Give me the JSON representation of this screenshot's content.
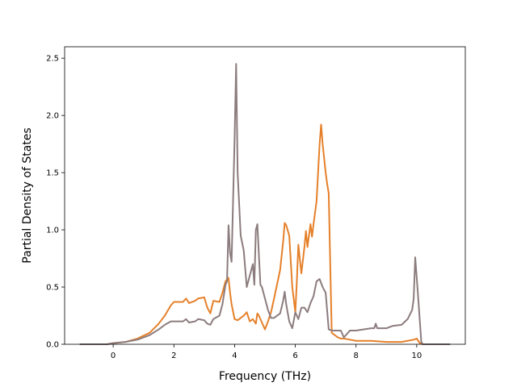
{
  "chart_data": {
    "type": "line",
    "xlabel": "Frequency (THz)",
    "ylabel": "Partial Density of States",
    "xlim": [
      -1.6,
      11.6
    ],
    "ylim": [
      0,
      2.6
    ],
    "x_ticks": [
      0,
      2,
      4,
      6,
      8,
      10
    ],
    "x_tick_labels": [
      "0",
      "2",
      "4",
      "6",
      "8",
      "10"
    ],
    "y_ticks": [
      0,
      0.5,
      1.0,
      1.5,
      2.0,
      2.5
    ],
    "y_tick_labels": [
      "0.0",
      "0.5",
      "1.0",
      "1.5",
      "2.0",
      "2.5"
    ],
    "grid": false,
    "legend": "none",
    "series": [
      {
        "color": "#e5802a",
        "x": [
          -1.1,
          -0.2,
          0.0,
          0.4,
          0.8,
          1.2,
          1.5,
          1.7,
          1.9,
          2.0,
          2.3,
          2.4,
          2.5,
          2.7,
          2.8,
          3.0,
          3.1,
          3.2,
          3.3,
          3.5,
          3.6,
          3.7,
          3.8,
          3.85,
          3.9,
          4.0,
          4.1,
          4.2,
          4.3,
          4.4,
          4.5,
          4.6,
          4.65,
          4.7,
          4.75,
          4.8,
          4.9,
          5.0,
          5.1,
          5.2,
          5.3,
          5.5,
          5.6,
          5.65,
          5.7,
          5.8,
          5.9,
          6.0,
          6.05,
          6.1,
          6.2,
          6.3,
          6.35,
          6.4,
          6.5,
          6.55,
          6.6,
          6.7,
          6.8,
          6.85,
          6.9,
          7.0,
          7.05,
          7.1,
          7.2,
          7.4,
          7.5,
          7.6,
          7.8,
          8.0,
          8.5,
          9.0,
          9.5,
          9.9,
          10.0,
          10.1,
          10.2,
          11.1
        ],
        "y": [
          0,
          0,
          0.01,
          0.02,
          0.05,
          0.1,
          0.18,
          0.25,
          0.34,
          0.37,
          0.37,
          0.4,
          0.36,
          0.38,
          0.4,
          0.41,
          0.32,
          0.27,
          0.38,
          0.37,
          0.45,
          0.55,
          0.58,
          0.45,
          0.35,
          0.22,
          0.21,
          0.23,
          0.25,
          0.28,
          0.2,
          0.22,
          0.2,
          0.18,
          0.27,
          0.25,
          0.19,
          0.13,
          0.2,
          0.28,
          0.4,
          0.65,
          0.9,
          1.06,
          1.04,
          0.95,
          0.5,
          0.28,
          0.55,
          0.87,
          0.62,
          0.85,
          0.99,
          0.85,
          1.05,
          0.94,
          1.05,
          1.25,
          1.75,
          1.92,
          1.75,
          1.5,
          1.4,
          1.32,
          0.1,
          0.06,
          0.05,
          0.05,
          0.04,
          0.03,
          0.03,
          0.02,
          0.02,
          0.04,
          0.05,
          0.01,
          0.0,
          0
        ]
      },
      {
        "color": "#8c7c7e",
        "x": [
          -1.1,
          -0.2,
          0.0,
          0.4,
          0.8,
          1.2,
          1.5,
          1.7,
          1.9,
          2.0,
          2.3,
          2.4,
          2.5,
          2.7,
          2.8,
          3.0,
          3.1,
          3.2,
          3.3,
          3.5,
          3.6,
          3.7,
          3.75,
          3.8,
          3.85,
          3.9,
          4.0,
          4.05,
          4.1,
          4.2,
          4.3,
          4.4,
          4.5,
          4.6,
          4.65,
          4.7,
          4.75,
          4.8,
          4.85,
          4.9,
          5.0,
          5.1,
          5.2,
          5.3,
          5.5,
          5.6,
          5.65,
          5.7,
          5.8,
          5.9,
          6.0,
          6.1,
          6.2,
          6.3,
          6.4,
          6.5,
          6.6,
          6.7,
          6.8,
          6.9,
          7.0,
          7.1,
          7.2,
          7.5,
          7.6,
          7.8,
          8.0,
          8.5,
          8.6,
          8.65,
          8.7,
          9.0,
          9.2,
          9.5,
          9.7,
          9.85,
          9.9,
          9.95,
          10.05,
          10.15,
          10.2,
          11.1
        ],
        "y": [
          0,
          0,
          0.01,
          0.02,
          0.04,
          0.08,
          0.13,
          0.17,
          0.2,
          0.2,
          0.2,
          0.22,
          0.19,
          0.2,
          0.22,
          0.21,
          0.18,
          0.17,
          0.22,
          0.25,
          0.35,
          0.52,
          0.55,
          1.04,
          0.8,
          0.72,
          1.8,
          2.45,
          1.5,
          0.95,
          0.82,
          0.5,
          0.6,
          0.7,
          0.52,
          1.0,
          1.05,
          0.78,
          0.52,
          0.5,
          0.4,
          0.3,
          0.23,
          0.23,
          0.27,
          0.38,
          0.46,
          0.35,
          0.2,
          0.14,
          0.28,
          0.22,
          0.32,
          0.32,
          0.28,
          0.36,
          0.42,
          0.55,
          0.57,
          0.5,
          0.45,
          0.13,
          0.12,
          0.12,
          0.06,
          0.12,
          0.12,
          0.14,
          0.14,
          0.18,
          0.14,
          0.14,
          0.16,
          0.17,
          0.22,
          0.3,
          0.4,
          0.76,
          0.4,
          0.02,
          0.0,
          0
        ]
      }
    ]
  }
}
